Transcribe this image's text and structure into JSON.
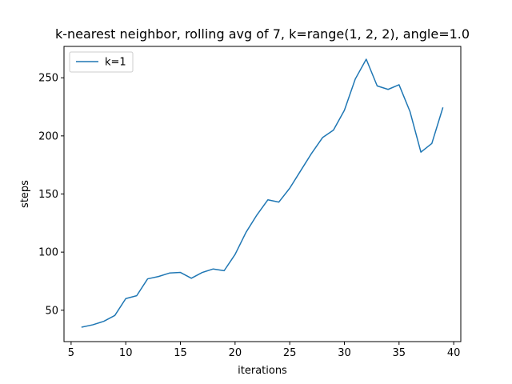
{
  "chart_data": {
    "type": "line",
    "title": "k-nearest neighbor, rolling avg of 7, k=range(1, 2, 2), angle=1.0",
    "xlabel": "iterations",
    "ylabel": "steps",
    "xlim": [
      4.35,
      40.65
    ],
    "ylim": [
      23,
      277
    ],
    "xticks": [
      5,
      10,
      15,
      20,
      25,
      30,
      35,
      40
    ],
    "yticks": [
      50,
      100,
      150,
      200,
      250
    ],
    "grid": false,
    "legend": "top-left",
    "series": [
      {
        "name": "k=1",
        "color": "#1f77b4",
        "x": [
          6,
          7,
          8,
          9,
          10,
          11,
          12,
          13,
          14,
          15,
          16,
          17,
          18,
          19,
          20,
          21,
          22,
          23,
          24,
          25,
          26,
          27,
          28,
          29,
          30,
          31,
          32,
          33,
          34,
          35,
          36,
          37,
          38,
          39
        ],
        "y": [
          35.5,
          37.5,
          40.5,
          45.5,
          60,
          62.5,
          77,
          79,
          82,
          82.5,
          77.5,
          82.5,
          85.5,
          84,
          98,
          117,
          132,
          145,
          143,
          155,
          170,
          185,
          198.5,
          205,
          222,
          249,
          266,
          243,
          240,
          244,
          221,
          186,
          193.5,
          224
        ]
      }
    ]
  }
}
